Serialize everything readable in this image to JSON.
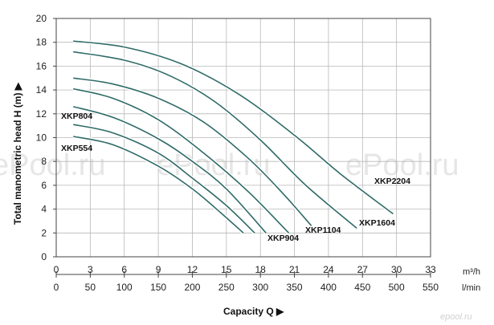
{
  "chart_data": {
    "type": "line",
    "title": "",
    "ylabel": "Total manometric head H (m) ▶",
    "xlabel": "Capacity Q ▶",
    "ylim": [
      0,
      20
    ],
    "xlim": [
      0,
      33
    ],
    "y_ticks": [
      "0",
      "2",
      "4",
      "6",
      "8",
      "10",
      "12",
      "14",
      "16",
      "18",
      "20"
    ],
    "x_ticks_m3h": [
      "0",
      "3",
      "6",
      "9",
      "12",
      "15",
      "18",
      "21",
      "24",
      "27",
      "30",
      "33"
    ],
    "x_ticks_lmin": [
      "0",
      "50",
      "100",
      "150",
      "200",
      "250",
      "300",
      "350",
      "400",
      "450",
      "500",
      "550"
    ],
    "x_unit_m3h": "m³/h",
    "x_unit_lmin": "l/min",
    "grid": true,
    "line_color": "#2f6b67",
    "series": [
      {
        "name": "",
        "x": [
          1.5,
          5,
          9,
          12,
          14.5,
          16.5
        ],
        "y": [
          10.1,
          9.4,
          7.6,
          5.7,
          3.7,
          2.0
        ]
      },
      {
        "name": "",
        "x": [
          1.5,
          5,
          9,
          12,
          15,
          17.5
        ],
        "y": [
          11.1,
          10.4,
          8.7,
          6.6,
          4.3,
          2.0
        ]
      },
      {
        "name": "XKP554",
        "x": [
          1.5,
          5,
          9,
          12,
          15,
          18.5
        ],
        "y": [
          12.6,
          11.7,
          9.9,
          8.0,
          5.7,
          2.0
        ]
      },
      {
        "name": "XKP804",
        "x": [
          1.5,
          5,
          9,
          13,
          17,
          20.5
        ],
        "y": [
          14.1,
          13.3,
          11.5,
          8.7,
          5.4,
          2.0
        ]
      },
      {
        "name": "XKP904",
        "x": [
          1.5,
          5,
          9,
          13,
          17,
          20,
          22.5
        ],
        "y": [
          15.0,
          14.5,
          13.3,
          11.3,
          8.2,
          5.3,
          2.6
        ]
      },
      {
        "name": "XKP1104",
        "x": [
          1.5,
          6,
          10,
          14,
          18,
          22,
          26.5
        ],
        "y": [
          17.2,
          16.5,
          15.2,
          13.0,
          9.8,
          6.0,
          2.4
        ]
      },
      {
        "name": "XKP1604",
        "x": [
          1.5,
          6,
          11,
          16,
          21,
          25,
          29.7
        ],
        "y": [
          18.1,
          17.6,
          16.2,
          13.7,
          10.2,
          7.0,
          3.6
        ]
      },
      {
        "name": "XKP2204"
      }
    ],
    "labels": [
      "XKP804",
      "XKP554",
      "XKP904",
      "XKP1104",
      "XKP1604",
      "XKP2204"
    ]
  },
  "watermark": "ePool.ru",
  "corner_mark": "epool.ru"
}
